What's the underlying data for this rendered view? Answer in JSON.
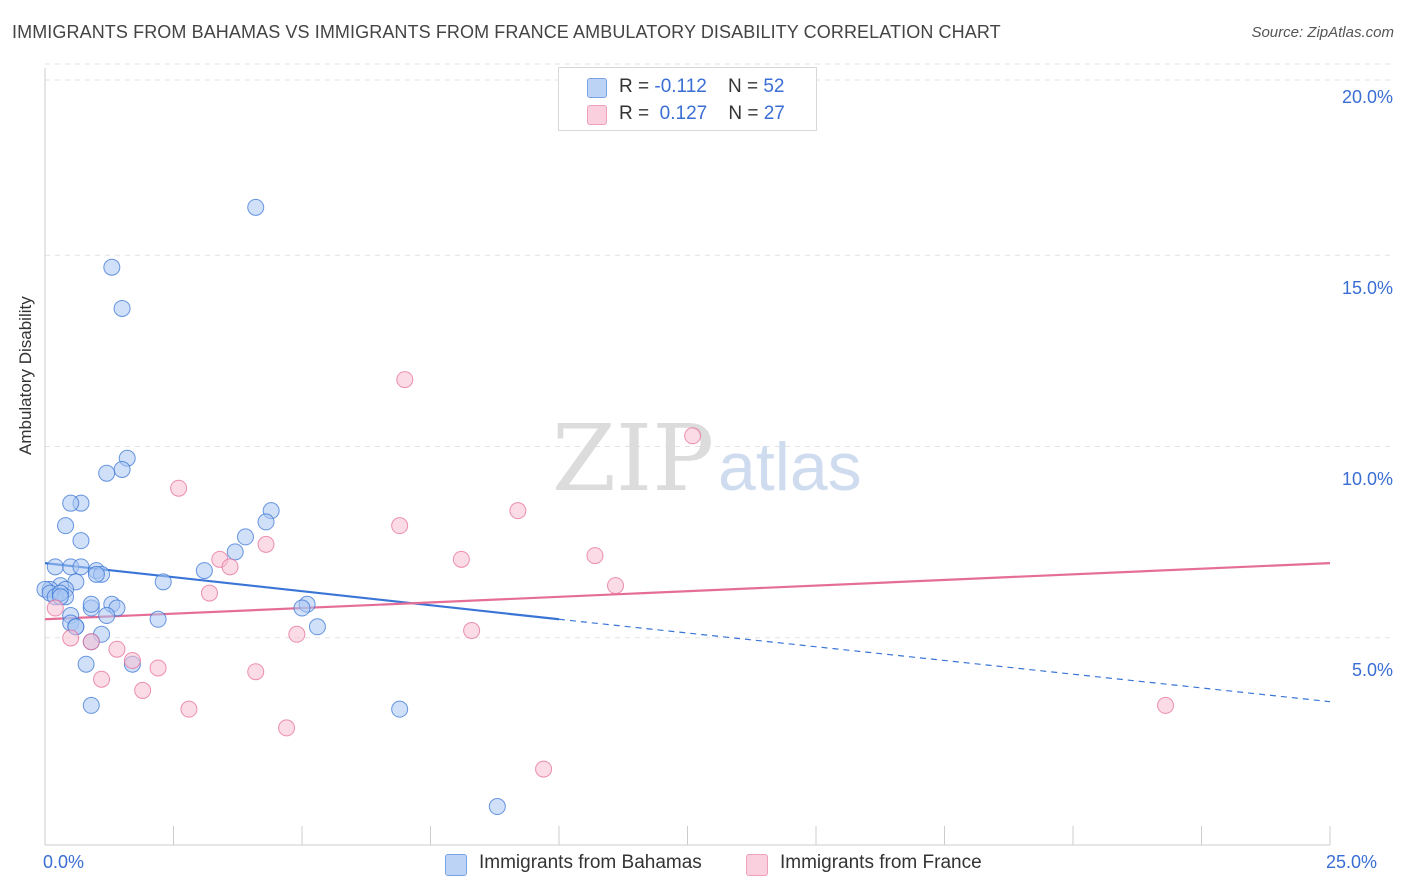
{
  "title": "IMMIGRANTS FROM BAHAMAS VS IMMIGRANTS FROM FRANCE AMBULATORY DISABILITY CORRELATION CHART",
  "source": "Source: ZipAtlas.com",
  "watermark": {
    "zip": "ZIP",
    "atlas": "atlas"
  },
  "legend": {
    "rows": [
      {
        "r_label": "R = ",
        "r_value": "-0.112",
        "n_label": "N = ",
        "n_value": "52",
        "color": "#8fb4ec"
      },
      {
        "r_label": "R = ",
        "r_value": "0.127",
        "n_label": "N = ",
        "n_value": "27",
        "color": "#f5a9c1"
      }
    ]
  },
  "bottom_legend": [
    {
      "label": "Immigrants from Bahamas",
      "color": "#8fb4ec"
    },
    {
      "label": "Immigrants from France",
      "color": "#f5a9c1"
    }
  ],
  "chart_data": {
    "type": "scatter",
    "title": "IMMIGRANTS FROM BAHAMAS VS IMMIGRANTS FROM FRANCE AMBULATORY DISABILITY CORRELATION CHART",
    "xlabel": "",
    "ylabel": "Ambulatory Disability",
    "xlim": [
      0,
      25
    ],
    "ylim": [
      0,
      20
    ],
    "x_tick_labels": [
      "0.0%",
      "25.0%"
    ],
    "y_ticks": [
      5,
      10,
      15,
      20
    ],
    "y_tick_labels": [
      "5.0%",
      "10.0%",
      "15.0%",
      "20.0%"
    ],
    "grid": true,
    "series": [
      {
        "name": "Immigrants from Bahamas",
        "color": "#3a75d6",
        "fill": "#a9c7f2",
        "trend": {
          "x0": 0,
          "y0": 7.1,
          "x1": 10,
          "y1": 5.6,
          "dash_x1": 25,
          "dash_y1": 3.4
        },
        "points": [
          [
            4.1,
            16.6
          ],
          [
            1.3,
            15.0
          ],
          [
            1.5,
            13.9
          ],
          [
            1.6,
            9.9
          ],
          [
            1.5,
            9.6
          ],
          [
            1.2,
            9.5
          ],
          [
            0.7,
            8.7
          ],
          [
            0.5,
            8.7
          ],
          [
            4.4,
            8.5
          ],
          [
            0.4,
            8.1
          ],
          [
            4.3,
            8.2
          ],
          [
            3.9,
            7.8
          ],
          [
            0.7,
            7.7
          ],
          [
            3.7,
            7.4
          ],
          [
            0.2,
            7.0
          ],
          [
            0.5,
            7.0
          ],
          [
            0.7,
            7.0
          ],
          [
            1.0,
            6.9
          ],
          [
            1.1,
            6.8
          ],
          [
            3.1,
            6.9
          ],
          [
            0.6,
            6.6
          ],
          [
            2.3,
            6.6
          ],
          [
            0.3,
            6.5
          ],
          [
            0.1,
            6.4
          ],
          [
            0.0,
            6.4
          ],
          [
            0.4,
            6.4
          ],
          [
            0.1,
            6.3
          ],
          [
            0.2,
            6.2
          ],
          [
            0.4,
            6.2
          ],
          [
            0.3,
            6.3
          ],
          [
            1.3,
            6.0
          ],
          [
            1.4,
            5.9
          ],
          [
            0.9,
            5.9
          ],
          [
            5.1,
            6.0
          ],
          [
            5.0,
            5.9
          ],
          [
            1.2,
            5.7
          ],
          [
            0.5,
            5.7
          ],
          [
            2.2,
            5.6
          ],
          [
            0.5,
            5.5
          ],
          [
            0.6,
            5.4
          ],
          [
            0.6,
            5.4
          ],
          [
            5.3,
            5.4
          ],
          [
            1.1,
            5.2
          ],
          [
            0.9,
            5.0
          ],
          [
            1.7,
            4.4
          ],
          [
            0.8,
            4.4
          ],
          [
            0.9,
            3.3
          ],
          [
            6.9,
            3.2
          ],
          [
            8.8,
            0.6
          ],
          [
            0.9,
            6.0
          ],
          [
            0.3,
            6.2
          ],
          [
            1.0,
            6.8
          ]
        ]
      },
      {
        "name": "Immigrants from France",
        "color": "#e56e98",
        "fill": "#f7bfd2",
        "trend": {
          "x0": 0,
          "y0": 5.6,
          "x1": 25,
          "y1": 7.1
        },
        "points": [
          [
            7.0,
            12.0
          ],
          [
            12.6,
            10.5
          ],
          [
            2.6,
            9.1
          ],
          [
            9.2,
            8.5
          ],
          [
            6.9,
            8.1
          ],
          [
            4.3,
            7.6
          ],
          [
            10.7,
            7.3
          ],
          [
            8.1,
            7.2
          ],
          [
            3.4,
            7.2
          ],
          [
            3.6,
            7.0
          ],
          [
            11.1,
            6.5
          ],
          [
            3.2,
            6.3
          ],
          [
            0.2,
            5.9
          ],
          [
            8.3,
            5.3
          ],
          [
            4.9,
            5.2
          ],
          [
            0.5,
            5.1
          ],
          [
            0.9,
            5.0
          ],
          [
            1.4,
            4.8
          ],
          [
            1.7,
            4.5
          ],
          [
            2.2,
            4.3
          ],
          [
            4.1,
            4.2
          ],
          [
            1.1,
            4.0
          ],
          [
            1.9,
            3.7
          ],
          [
            2.8,
            3.2
          ],
          [
            21.8,
            3.3
          ],
          [
            4.7,
            2.7
          ],
          [
            9.7,
            1.6
          ]
        ]
      }
    ]
  }
}
